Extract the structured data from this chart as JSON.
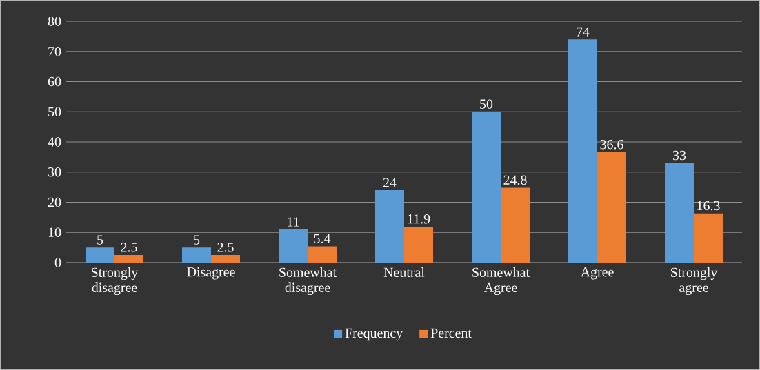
{
  "chart_data": {
    "type": "bar",
    "categories": [
      "Strongly disagree",
      "Disagree",
      "Somewhat disagree",
      "Neutral",
      "Somewhat Agree",
      "Agree",
      "Strongly agree"
    ],
    "series": [
      {
        "name": "Frequency",
        "color": "#5b9bd5",
        "values": [
          5,
          5,
          11,
          24,
          50,
          74,
          33
        ]
      },
      {
        "name": "Percent",
        "color": "#ed7d31",
        "values": [
          2.5,
          2.5,
          5.4,
          11.9,
          24.8,
          36.6,
          16.3
        ]
      }
    ],
    "ylim": [
      0,
      80
    ],
    "yticks": [
      0,
      10,
      20,
      30,
      40,
      50,
      60,
      70,
      80
    ],
    "grid": "y",
    "legend": "bottom",
    "data_labels": true
  }
}
